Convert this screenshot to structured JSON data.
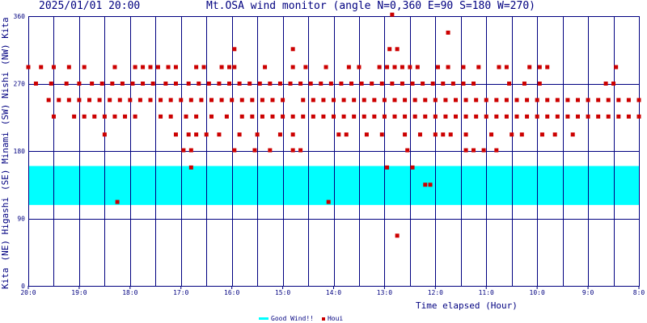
{
  "header": {
    "datetime": "2025/01/01 20:00",
    "title": "Mt.OSA wind monitor (angle N=0,360 E=90 S=180 W=270)"
  },
  "y_axis_labels": [
    "(NE) Higashi",
    "(SE) Minami",
    "(SW) Nishi",
    "(NW) Kita"
  ],
  "y_axis_prefix": "Kita",
  "legend": {
    "good": "Good Wind!!",
    "houi": "Houi"
  },
  "colors": {
    "frame": "#000080",
    "good_band": "#00ffff",
    "points": "#cc0000"
  },
  "chart_data": {
    "type": "scatter",
    "title": "Mt.OSA wind monitor (angle N=0,360 E=90 S=180 W=270)",
    "xlabel": "Time elapsed (Hour)",
    "ylabel": "",
    "x_direction": "reversed",
    "xlim": [
      0,
      12
    ],
    "ylim": [
      0,
      360
    ],
    "x_ticks": [
      {
        "hour": 0,
        "label": "20:0"
      },
      {
        "hour": 1,
        "label": "19:0"
      },
      {
        "hour": 2,
        "label": "18:0"
      },
      {
        "hour": 3,
        "label": "17:0"
      },
      {
        "hour": 4,
        "label": "16:0"
      },
      {
        "hour": 5,
        "label": "15:0"
      },
      {
        "hour": 6,
        "label": "14:0"
      },
      {
        "hour": 7,
        "label": "13:0"
      },
      {
        "hour": 8,
        "label": "12:0"
      },
      {
        "hour": 9,
        "label": "11:0"
      },
      {
        "hour": 10,
        "label": "10:0"
      },
      {
        "hour": 11,
        "label": "9:0"
      },
      {
        "hour": 12,
        "label": "8:0"
      }
    ],
    "y_ticks": [
      0,
      90,
      180,
      270,
      360
    ],
    "good_wind_band": [
      108,
      160
    ],
    "grid": true,
    "legend_position": "bottom-center",
    "series": [
      {
        "name": "Houi",
        "points": [
          [
            0.0,
            292
          ],
          [
            0.25,
            292
          ],
          [
            0.5,
            292
          ],
          [
            0.8,
            292
          ],
          [
            1.1,
            292
          ],
          [
            1.7,
            292
          ],
          [
            2.1,
            292
          ],
          [
            2.25,
            292
          ],
          [
            2.4,
            292
          ],
          [
            2.55,
            292
          ],
          [
            2.75,
            292
          ],
          [
            2.9,
            292
          ],
          [
            3.3,
            292
          ],
          [
            3.45,
            292
          ],
          [
            3.8,
            292
          ],
          [
            3.95,
            292
          ],
          [
            4.05,
            292
          ],
          [
            4.65,
            292
          ],
          [
            5.2,
            292
          ],
          [
            5.45,
            292
          ],
          [
            5.85,
            292
          ],
          [
            6.3,
            292
          ],
          [
            6.5,
            292
          ],
          [
            6.9,
            292
          ],
          [
            7.05,
            292
          ],
          [
            7.2,
            292
          ],
          [
            7.35,
            292
          ],
          [
            7.5,
            292
          ],
          [
            7.65,
            292
          ],
          [
            8.05,
            292
          ],
          [
            8.25,
            292
          ],
          [
            8.55,
            292
          ],
          [
            8.85,
            292
          ],
          [
            9.25,
            292
          ],
          [
            9.4,
            292
          ],
          [
            9.85,
            292
          ],
          [
            10.05,
            292
          ],
          [
            10.2,
            292
          ],
          [
            11.55,
            292
          ],
          [
            0.15,
            270
          ],
          [
            0.45,
            270
          ],
          [
            0.75,
            270
          ],
          [
            1.0,
            270
          ],
          [
            1.25,
            270
          ],
          [
            1.45,
            270
          ],
          [
            1.65,
            270
          ],
          [
            1.85,
            270
          ],
          [
            2.05,
            270
          ],
          [
            2.25,
            270
          ],
          [
            2.45,
            270
          ],
          [
            2.7,
            270
          ],
          [
            2.9,
            270
          ],
          [
            3.15,
            270
          ],
          [
            3.35,
            270
          ],
          [
            3.55,
            270
          ],
          [
            3.75,
            270
          ],
          [
            3.95,
            270
          ],
          [
            4.15,
            270
          ],
          [
            4.35,
            270
          ],
          [
            4.55,
            270
          ],
          [
            4.75,
            270
          ],
          [
            4.95,
            270
          ],
          [
            5.15,
            270
          ],
          [
            5.35,
            270
          ],
          [
            5.55,
            270
          ],
          [
            5.75,
            270
          ],
          [
            5.95,
            270
          ],
          [
            6.15,
            270
          ],
          [
            6.35,
            270
          ],
          [
            6.55,
            270
          ],
          [
            6.75,
            270
          ],
          [
            6.95,
            270
          ],
          [
            7.15,
            270
          ],
          [
            7.35,
            270
          ],
          [
            7.55,
            270
          ],
          [
            7.75,
            270
          ],
          [
            7.95,
            270
          ],
          [
            8.15,
            270
          ],
          [
            8.35,
            270
          ],
          [
            8.55,
            270
          ],
          [
            8.75,
            270
          ],
          [
            9.45,
            270
          ],
          [
            9.75,
            270
          ],
          [
            10.05,
            270
          ],
          [
            11.35,
            270
          ],
          [
            11.5,
            270
          ],
          [
            0.4,
            248
          ],
          [
            0.6,
            248
          ],
          [
            0.8,
            248
          ],
          [
            1.0,
            248
          ],
          [
            1.2,
            248
          ],
          [
            1.4,
            248
          ],
          [
            1.6,
            248
          ],
          [
            1.8,
            248
          ],
          [
            2.0,
            248
          ],
          [
            2.2,
            248
          ],
          [
            2.4,
            248
          ],
          [
            2.6,
            248
          ],
          [
            2.8,
            248
          ],
          [
            3.0,
            248
          ],
          [
            3.2,
            248
          ],
          [
            3.4,
            248
          ],
          [
            3.6,
            248
          ],
          [
            3.8,
            248
          ],
          [
            4.0,
            248
          ],
          [
            4.2,
            248
          ],
          [
            4.4,
            248
          ],
          [
            4.6,
            248
          ],
          [
            4.8,
            248
          ],
          [
            5.0,
            248
          ],
          [
            5.4,
            248
          ],
          [
            5.6,
            248
          ],
          [
            5.8,
            248
          ],
          [
            6.0,
            248
          ],
          [
            6.2,
            248
          ],
          [
            6.4,
            248
          ],
          [
            6.6,
            248
          ],
          [
            6.8,
            248
          ],
          [
            7.0,
            248
          ],
          [
            7.2,
            248
          ],
          [
            7.4,
            248
          ],
          [
            7.6,
            248
          ],
          [
            7.8,
            248
          ],
          [
            8.0,
            248
          ],
          [
            8.2,
            248
          ],
          [
            8.4,
            248
          ],
          [
            8.6,
            248
          ],
          [
            8.8,
            248
          ],
          [
            9.0,
            248
          ],
          [
            9.2,
            248
          ],
          [
            9.4,
            248
          ],
          [
            9.6,
            248
          ],
          [
            9.8,
            248
          ],
          [
            10.0,
            248
          ],
          [
            10.2,
            248
          ],
          [
            10.4,
            248
          ],
          [
            10.6,
            248
          ],
          [
            10.8,
            248
          ],
          [
            11.0,
            248
          ],
          [
            11.2,
            248
          ],
          [
            11.4,
            248
          ],
          [
            11.6,
            248
          ],
          [
            11.8,
            248
          ],
          [
            12.0,
            248
          ],
          [
            0.5,
            226
          ],
          [
            0.9,
            226
          ],
          [
            1.1,
            226
          ],
          [
            1.3,
            226
          ],
          [
            1.5,
            226
          ],
          [
            1.7,
            226
          ],
          [
            1.9,
            226
          ],
          [
            2.1,
            226
          ],
          [
            2.6,
            226
          ],
          [
            2.8,
            226
          ],
          [
            3.1,
            226
          ],
          [
            3.3,
            226
          ],
          [
            3.6,
            226
          ],
          [
            3.9,
            226
          ],
          [
            4.2,
            226
          ],
          [
            4.4,
            226
          ],
          [
            4.6,
            226
          ],
          [
            4.8,
            226
          ],
          [
            5.0,
            226
          ],
          [
            5.2,
            226
          ],
          [
            5.4,
            226
          ],
          [
            5.6,
            226
          ],
          [
            5.8,
            226
          ],
          [
            6.0,
            226
          ],
          [
            6.2,
            226
          ],
          [
            6.4,
            226
          ],
          [
            6.6,
            226
          ],
          [
            6.8,
            226
          ],
          [
            7.0,
            226
          ],
          [
            7.2,
            226
          ],
          [
            7.4,
            226
          ],
          [
            7.6,
            226
          ],
          [
            7.8,
            226
          ],
          [
            8.0,
            226
          ],
          [
            8.2,
            226
          ],
          [
            8.4,
            226
          ],
          [
            8.6,
            226
          ],
          [
            8.8,
            226
          ],
          [
            9.0,
            226
          ],
          [
            9.2,
            226
          ],
          [
            9.4,
            226
          ],
          [
            9.6,
            226
          ],
          [
            9.8,
            226
          ],
          [
            10.0,
            226
          ],
          [
            10.2,
            226
          ],
          [
            10.4,
            226
          ],
          [
            10.6,
            226
          ],
          [
            10.8,
            226
          ],
          [
            11.0,
            226
          ],
          [
            11.2,
            226
          ],
          [
            11.4,
            226
          ],
          [
            11.6,
            226
          ],
          [
            11.8,
            226
          ],
          [
            12.0,
            226
          ],
          [
            1.5,
            202
          ],
          [
            2.9,
            202
          ],
          [
            3.15,
            202
          ],
          [
            3.3,
            202
          ],
          [
            3.5,
            202
          ],
          [
            3.75,
            202
          ],
          [
            4.15,
            202
          ],
          [
            4.5,
            202
          ],
          [
            4.95,
            202
          ],
          [
            5.2,
            202
          ],
          [
            6.1,
            202
          ],
          [
            6.25,
            202
          ],
          [
            6.65,
            202
          ],
          [
            6.95,
            202
          ],
          [
            7.4,
            202
          ],
          [
            7.7,
            202
          ],
          [
            8.0,
            202
          ],
          [
            8.15,
            202
          ],
          [
            8.3,
            202
          ],
          [
            8.6,
            202
          ],
          [
            9.1,
            202
          ],
          [
            9.5,
            202
          ],
          [
            9.7,
            202
          ],
          [
            10.1,
            202
          ],
          [
            10.35,
            202
          ],
          [
            10.7,
            202
          ],
          [
            3.05,
            181
          ],
          [
            3.2,
            181
          ],
          [
            4.05,
            181
          ],
          [
            4.45,
            181
          ],
          [
            4.75,
            181
          ],
          [
            5.2,
            181
          ],
          [
            5.35,
            181
          ],
          [
            7.45,
            181
          ],
          [
            8.6,
            181
          ],
          [
            8.75,
            181
          ],
          [
            8.95,
            181
          ],
          [
            9.2,
            181
          ],
          [
            3.2,
            158
          ],
          [
            7.05,
            158
          ],
          [
            7.55,
            158
          ],
          [
            7.8,
            135
          ],
          [
            7.9,
            135
          ],
          [
            1.75,
            112
          ],
          [
            5.9,
            112
          ],
          [
            7.25,
            67
          ],
          [
            4.05,
            316
          ],
          [
            5.2,
            316
          ],
          [
            7.1,
            316
          ],
          [
            7.25,
            316
          ],
          [
            8.25,
            338
          ],
          [
            7.15,
            362
          ]
        ]
      }
    ]
  }
}
